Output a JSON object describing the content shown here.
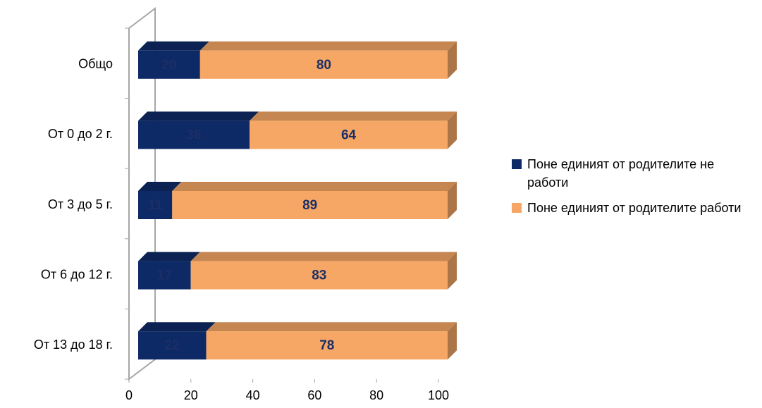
{
  "chart_data": {
    "type": "bar",
    "orientation": "horizontal",
    "stacked": true,
    "three_d": true,
    "categories": [
      "Общо",
      "От 0 до 2 г.",
      "От 3 до 5 г.",
      "От 6 до 12 г.",
      "От 13 до 18 г."
    ],
    "series": [
      {
        "name": "Поне единият от родителите не работи",
        "color": "#0e2a66",
        "values": [
          20,
          36,
          11,
          17,
          22
        ]
      },
      {
        "name": "Поне единият от родителите работи",
        "color": "#f6a765",
        "values": [
          80,
          64,
          89,
          83,
          78
        ]
      }
    ],
    "xlim": [
      0,
      100
    ],
    "xticks": [
      0,
      20,
      40,
      60,
      80,
      100
    ],
    "legend": "right"
  }
}
